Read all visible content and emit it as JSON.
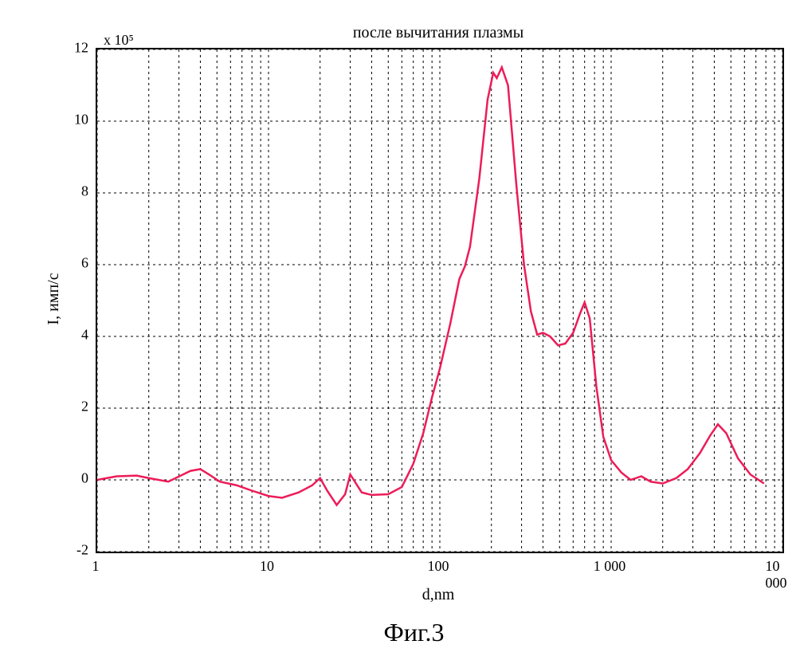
{
  "chart": {
    "type": "line",
    "title": "после вычитания плазмы",
    "exponent_label": "x 10⁵",
    "xlabel": "d,nm",
    "ylabel": "I, имп/с",
    "figure_label": "Фиг.3",
    "background_color": "#ffffff",
    "border_color": "#000000",
    "grid_color": "#000000",
    "grid_dash": "3,4",
    "series_color": "#ed1c58",
    "xscale": "log",
    "yscale": "linear",
    "xlim": [
      1,
      10000
    ],
    "ylim": [
      -2,
      12
    ],
    "xticks_major": [
      {
        "v": 1,
        "label": "1"
      },
      {
        "v": 10,
        "label": "10"
      },
      {
        "v": 100,
        "label": "100"
      },
      {
        "v": 1000,
        "label": "1 000"
      },
      {
        "v": 10000,
        "label": "10 000"
      }
    ],
    "xticks_minor": [
      2,
      3,
      4,
      5,
      6,
      7,
      8,
      9,
      20,
      30,
      40,
      50,
      60,
      70,
      80,
      90,
      200,
      300,
      400,
      500,
      600,
      700,
      800,
      900,
      2000,
      3000,
      4000,
      5000,
      6000,
      7000,
      8000,
      9000
    ],
    "yticks": [
      {
        "v": -2,
        "label": "-2"
      },
      {
        "v": 0,
        "label": "0"
      },
      {
        "v": 2,
        "label": "2"
      },
      {
        "v": 4,
        "label": "4"
      },
      {
        "v": 6,
        "label": "6"
      },
      {
        "v": 8,
        "label": "8"
      },
      {
        "v": 10,
        "label": "10"
      },
      {
        "v": 12,
        "label": "12"
      }
    ],
    "data": [
      {
        "x": 1,
        "y": 0
      },
      {
        "x": 1.3,
        "y": 0.1
      },
      {
        "x": 1.7,
        "y": 0.12
      },
      {
        "x": 2,
        "y": 0.05
      },
      {
        "x": 2.6,
        "y": -0.05
      },
      {
        "x": 3.5,
        "y": 0.25
      },
      {
        "x": 4,
        "y": 0.3
      },
      {
        "x": 4.5,
        "y": 0.15
      },
      {
        "x": 5.2,
        "y": -0.05
      },
      {
        "x": 6.5,
        "y": -0.15
      },
      {
        "x": 8,
        "y": -0.3
      },
      {
        "x": 10,
        "y": -0.45
      },
      {
        "x": 12,
        "y": -0.5
      },
      {
        "x": 15,
        "y": -0.35
      },
      {
        "x": 18,
        "y": -0.15
      },
      {
        "x": 20,
        "y": 0.05
      },
      {
        "x": 22,
        "y": -0.3
      },
      {
        "x": 25,
        "y": -0.7
      },
      {
        "x": 28,
        "y": -0.4
      },
      {
        "x": 30,
        "y": 0.15
      },
      {
        "x": 35,
        "y": -0.35
      },
      {
        "x": 40,
        "y": -0.42
      },
      {
        "x": 50,
        "y": -0.4
      },
      {
        "x": 60,
        "y": -0.2
      },
      {
        "x": 70,
        "y": 0.45
      },
      {
        "x": 80,
        "y": 1.3
      },
      {
        "x": 90,
        "y": 2.3
      },
      {
        "x": 100,
        "y": 3.1
      },
      {
        "x": 115,
        "y": 4.35
      },
      {
        "x": 130,
        "y": 5.6
      },
      {
        "x": 140,
        "y": 5.95
      },
      {
        "x": 150,
        "y": 6.5
      },
      {
        "x": 170,
        "y": 8.4
      },
      {
        "x": 190,
        "y": 10.6
      },
      {
        "x": 205,
        "y": 11.35
      },
      {
        "x": 215,
        "y": 11.2
      },
      {
        "x": 230,
        "y": 11.5
      },
      {
        "x": 250,
        "y": 11.0
      },
      {
        "x": 280,
        "y": 8.2
      },
      {
        "x": 310,
        "y": 6.0
      },
      {
        "x": 340,
        "y": 4.7
      },
      {
        "x": 370,
        "y": 4.05
      },
      {
        "x": 400,
        "y": 4.1
      },
      {
        "x": 440,
        "y": 4.0
      },
      {
        "x": 490,
        "y": 3.75
      },
      {
        "x": 540,
        "y": 3.8
      },
      {
        "x": 600,
        "y": 4.1
      },
      {
        "x": 660,
        "y": 4.65
      },
      {
        "x": 700,
        "y": 4.95
      },
      {
        "x": 750,
        "y": 4.5
      },
      {
        "x": 820,
        "y": 2.6
      },
      {
        "x": 900,
        "y": 1.2
      },
      {
        "x": 1000,
        "y": 0.55
      },
      {
        "x": 1150,
        "y": 0.2
      },
      {
        "x": 1300,
        "y": 0.0
      },
      {
        "x": 1500,
        "y": 0.1
      },
      {
        "x": 1700,
        "y": -0.05
      },
      {
        "x": 2000,
        "y": -0.1
      },
      {
        "x": 2400,
        "y": 0.05
      },
      {
        "x": 2800,
        "y": 0.3
      },
      {
        "x": 3300,
        "y": 0.75
      },
      {
        "x": 3800,
        "y": 1.25
      },
      {
        "x": 4200,
        "y": 1.55
      },
      {
        "x": 4700,
        "y": 1.3
      },
      {
        "x": 5500,
        "y": 0.6
      },
      {
        "x": 6500,
        "y": 0.15
      },
      {
        "x": 7800,
        "y": -0.1
      }
    ]
  }
}
